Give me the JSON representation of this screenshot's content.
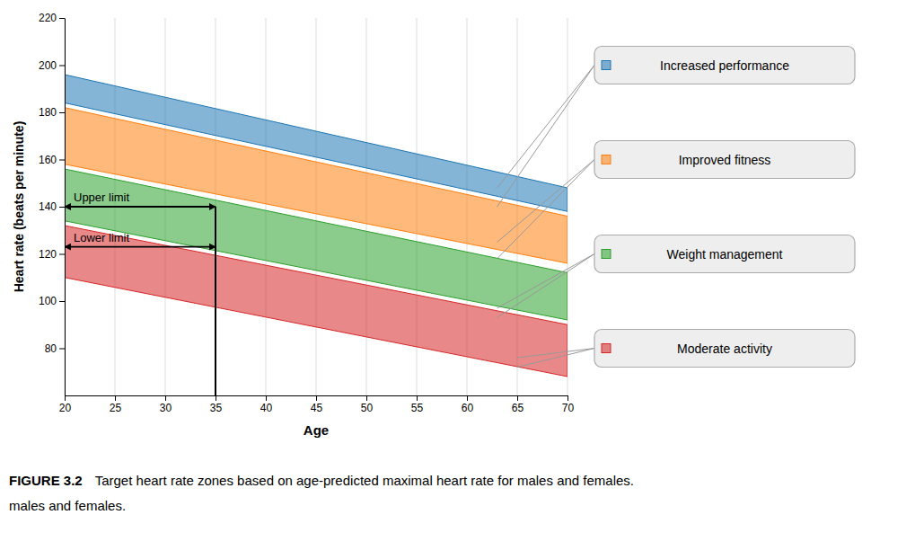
{
  "chart_data": {
    "type": "band",
    "xlabel": "Age",
    "ylabel": "Heart rate (beats per minute)",
    "caption_title": "FIGURE 3.2",
    "caption": "Target heart rate zones based on age-predicted maximal heart rate for males and females.",
    "caption_continued": "males and females.",
    "x": [
      20,
      70
    ],
    "series": [
      {
        "name": "Increased performance",
        "top": [
          196,
          148
        ],
        "bottom": [
          184,
          138
        ],
        "connector": {
          "x": 63,
          "top": 148,
          "bottom": 140
        }
      },
      {
        "name": "Improved fitness",
        "top": [
          182,
          136
        ],
        "bottom": [
          158,
          116
        ],
        "connector": {
          "x": 63,
          "top": 125,
          "bottom": 118
        }
      },
      {
        "name": "Weight management",
        "top": [
          156,
          112
        ],
        "bottom": [
          134,
          92
        ],
        "connector": {
          "x": 63,
          "top": 97,
          "bottom": 93
        }
      },
      {
        "name": "Moderate activity",
        "top": [
          132,
          90
        ],
        "bottom": [
          110,
          68
        ],
        "connector": {
          "x": 65,
          "top": 76,
          "bottom": 72
        }
      }
    ],
    "xlim": [
      20,
      70
    ],
    "ylim": [
      60,
      220
    ],
    "xticks": [
      20,
      25,
      30,
      35,
      40,
      45,
      50,
      55,
      60,
      65,
      70
    ],
    "yticks": [
      80,
      100,
      120,
      140,
      160,
      180,
      200,
      220
    ],
    "grid": true,
    "vertical_line": {
      "x": 35,
      "y_end": 140
    },
    "annotations": [
      {
        "text": "Upper limit",
        "x_start": 20,
        "x_end": 35,
        "y": 140
      },
      {
        "text": "Lower limit",
        "x_start": 20,
        "x_end": 35,
        "y": 123
      }
    ]
  }
}
